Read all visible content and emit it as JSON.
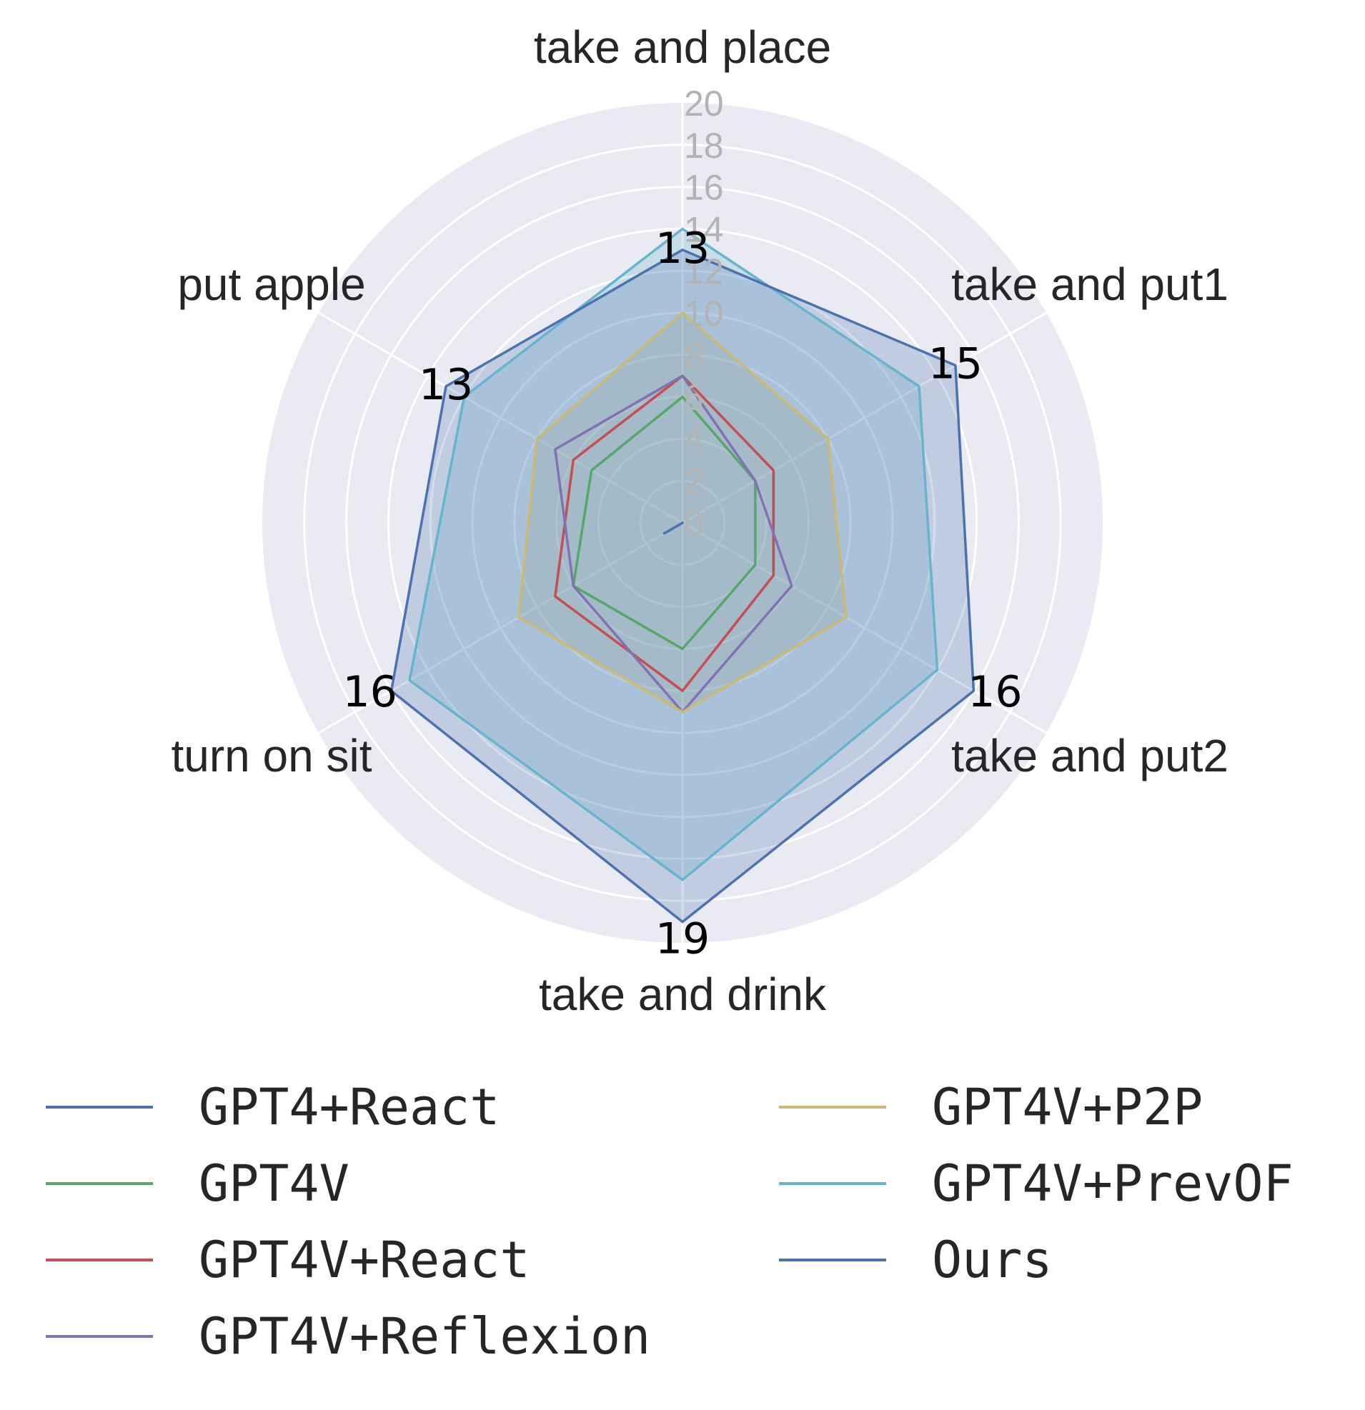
{
  "chart_data": {
    "type": "radar",
    "title": "",
    "categories": [
      "take and place",
      "take and put1",
      "take and put2",
      "take and drink",
      "turn on sit",
      "put apple"
    ],
    "rlim": [
      0,
      20
    ],
    "r_ticks": [
      "0",
      "2",
      "4",
      "6",
      "8",
      "10",
      "12",
      "14",
      "16",
      "18",
      "20"
    ],
    "grid": true,
    "legend_position": "bottom",
    "series": [
      {
        "name": "GPT4+React",
        "color": "#4C72B0",
        "values": [
          0,
          0,
          0,
          0,
          1,
          0
        ],
        "fill": false
      },
      {
        "name": "GPT4V",
        "color": "#55A868",
        "values": [
          6,
          4,
          4,
          6,
          6,
          5
        ],
        "fill": false
      },
      {
        "name": "GPT4V+React",
        "color": "#C44E52",
        "values": [
          7,
          5,
          5,
          8,
          7,
          6
        ],
        "fill": false
      },
      {
        "name": "GPT4V+Reflexion",
        "color": "#8172B2",
        "values": [
          7,
          4,
          6,
          9,
          6,
          7
        ],
        "fill": false
      },
      {
        "name": "GPT4V+P2P",
        "color": "#CCB974",
        "values": [
          10,
          8,
          9,
          9,
          9,
          8
        ],
        "fill": true
      },
      {
        "name": "GPT4V+PrevOF",
        "color": "#64B5CD",
        "values": [
          14,
          13,
          14,
          17,
          15,
          12
        ],
        "fill": true
      },
      {
        "name": "Ours",
        "color": "#4C72B0",
        "values": [
          13,
          15,
          16,
          19,
          16,
          13
        ],
        "fill": true
      }
    ],
    "data_labels": [
      {
        "series": "Ours",
        "category": "take and place",
        "text": "13"
      },
      {
        "series": "Ours",
        "category": "take and put1",
        "text": "15"
      },
      {
        "series": "Ours",
        "category": "take and put2",
        "text": "16"
      },
      {
        "series": "Ours",
        "category": "take and drink",
        "text": "19"
      },
      {
        "series": "Ours",
        "category": "turn on sit",
        "text": "16"
      },
      {
        "series": "Ours",
        "category": "put apple",
        "text": "13"
      }
    ]
  },
  "colors": {
    "panel_background": "#EAEAF2",
    "gridline": "#FFFFFF",
    "tick_label": "#B3B3B3",
    "category_label": "#262626",
    "data_label": "#000000"
  }
}
